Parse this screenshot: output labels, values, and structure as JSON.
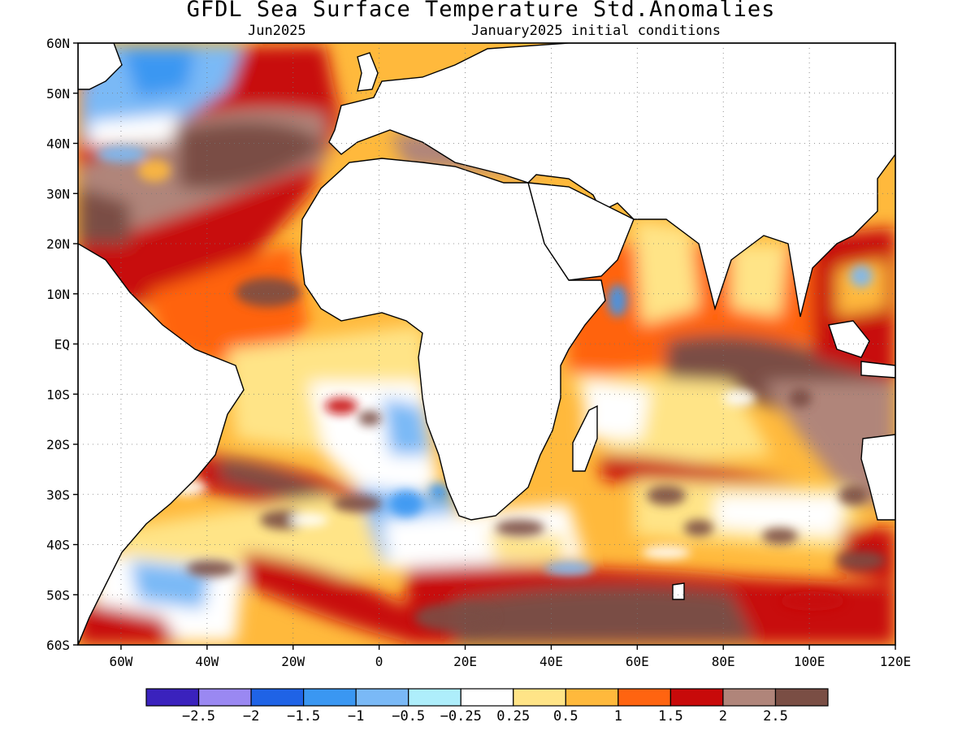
{
  "header": {
    "title": "GFDL Sea Surface Temperature Std.Anomalies",
    "valid_month": "Jun2025",
    "init_conditions": "January2025 initial conditions"
  },
  "map": {
    "lat_labels": [
      "60N",
      "50N",
      "40N",
      "30N",
      "20N",
      "10N",
      "EQ",
      "10S",
      "20S",
      "30S",
      "40S",
      "50S",
      "60S"
    ],
    "lon_labels": [
      "60W",
      "40W",
      "20W",
      "0",
      "20E",
      "40E",
      "60E",
      "80E",
      "100E",
      "120E"
    ],
    "lon_range": [
      -70,
      120
    ],
    "lat_range": [
      -60,
      60
    ],
    "grid": true
  },
  "legend": {
    "colors": [
      "#3a22bd",
      "#9a88f2",
      "#1f63e6",
      "#3a97f2",
      "#7ab9f6",
      "#aeeefb",
      "#ffffff",
      "#ffe487",
      "#ffb93c",
      "#ff6410",
      "#c80a0a",
      "#b0857a",
      "#7a4e44"
    ],
    "labels": [
      "−2.5",
      "−2",
      "−1.5",
      "−1",
      "−0.5",
      "−0.25",
      "0.25",
      "0.5",
      "1",
      "1.5",
      "2",
      "2.5"
    ]
  }
}
